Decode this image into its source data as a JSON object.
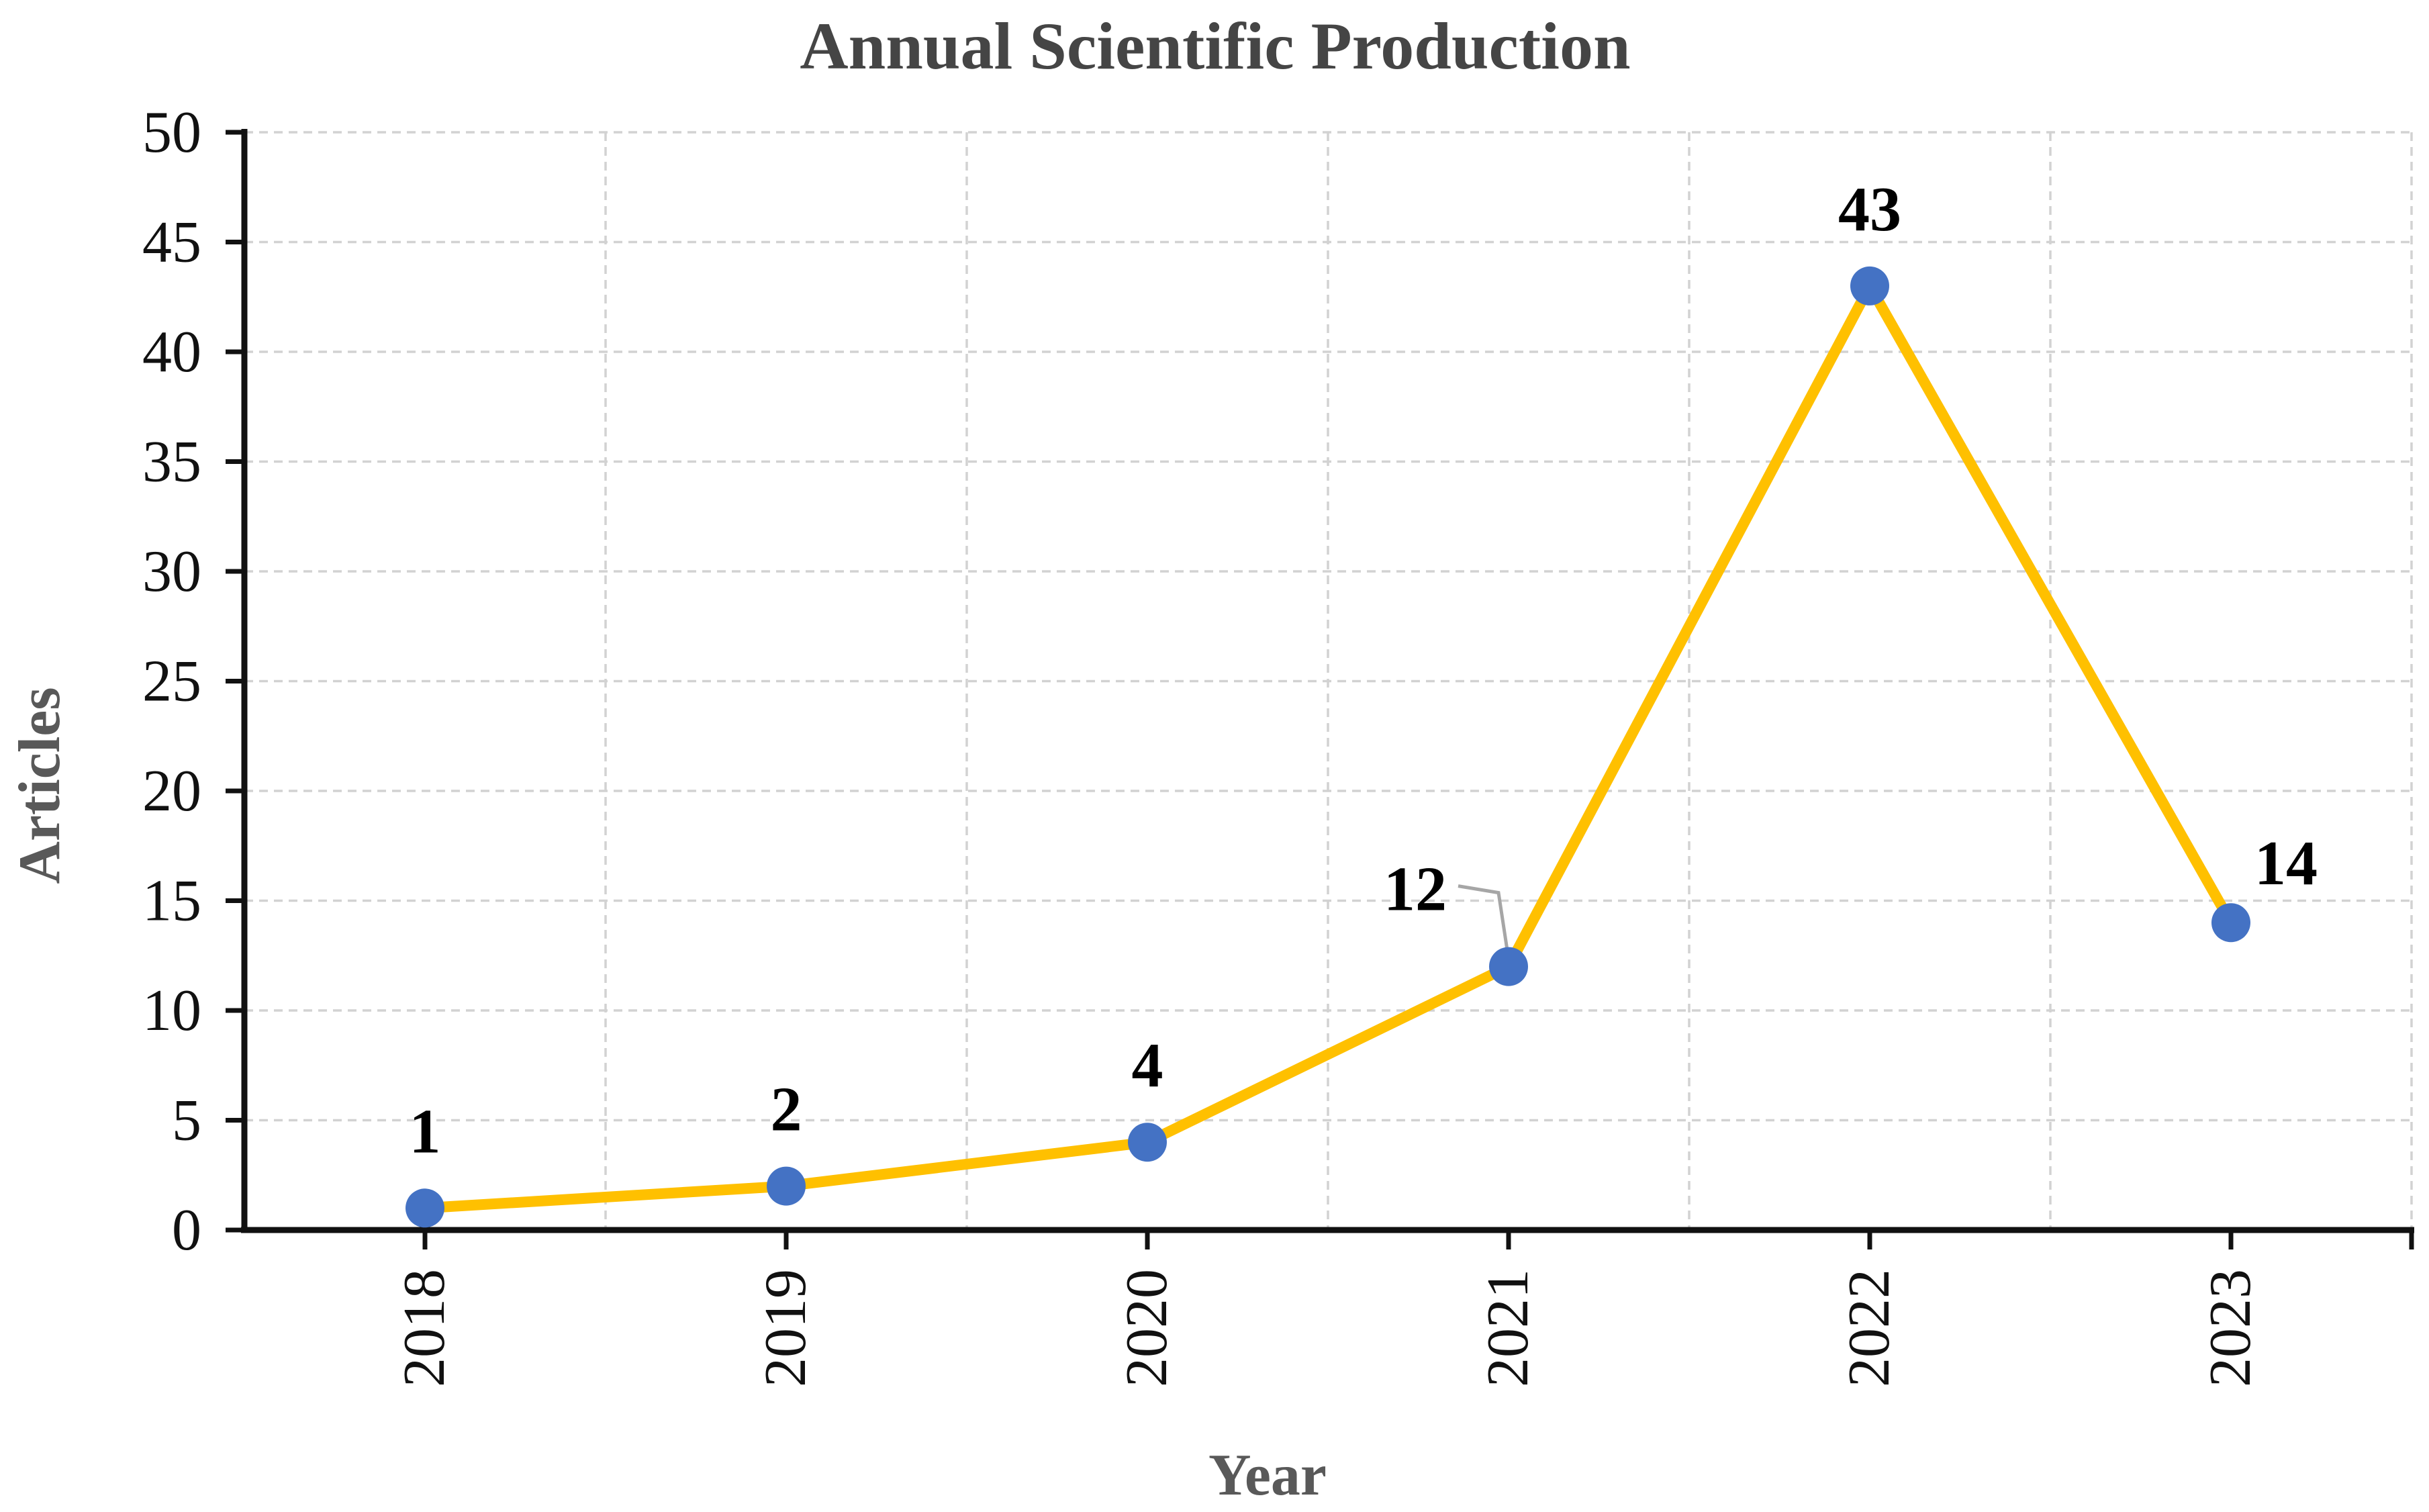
{
  "title": "Annual Scientific Production",
  "colors": {
    "line": "#FFC000",
    "marker": "#4472C4",
    "grid": "#D2D2D2",
    "axis": "#111111",
    "title_text": "#454545",
    "axis_title_text": "#595959",
    "data_label_text": "#000000",
    "leader": "#A6A6A6",
    "background": "#FFFFFF"
  },
  "chart_data": {
    "type": "line",
    "title": "Annual Scientific Production",
    "xlabel": "Year",
    "ylabel": "Articles",
    "categories": [
      "2018",
      "2019",
      "2020",
      "2021",
      "2022",
      "2023"
    ],
    "values": [
      1,
      2,
      4,
      12,
      43,
      14
    ],
    "data_labels": [
      "1",
      "2",
      "4",
      "12",
      "43",
      "14"
    ],
    "ylim": [
      0,
      50
    ],
    "ytick_step": 5,
    "yticks": [
      0,
      5,
      10,
      15,
      20,
      25,
      30,
      35,
      40,
      45,
      50
    ],
    "grid": "dashed",
    "legend": "none",
    "marker_style": "circle",
    "x_label_rotation": -90,
    "annotation": {
      "label": "12",
      "attached_to": "2021",
      "leader_line": true
    }
  }
}
